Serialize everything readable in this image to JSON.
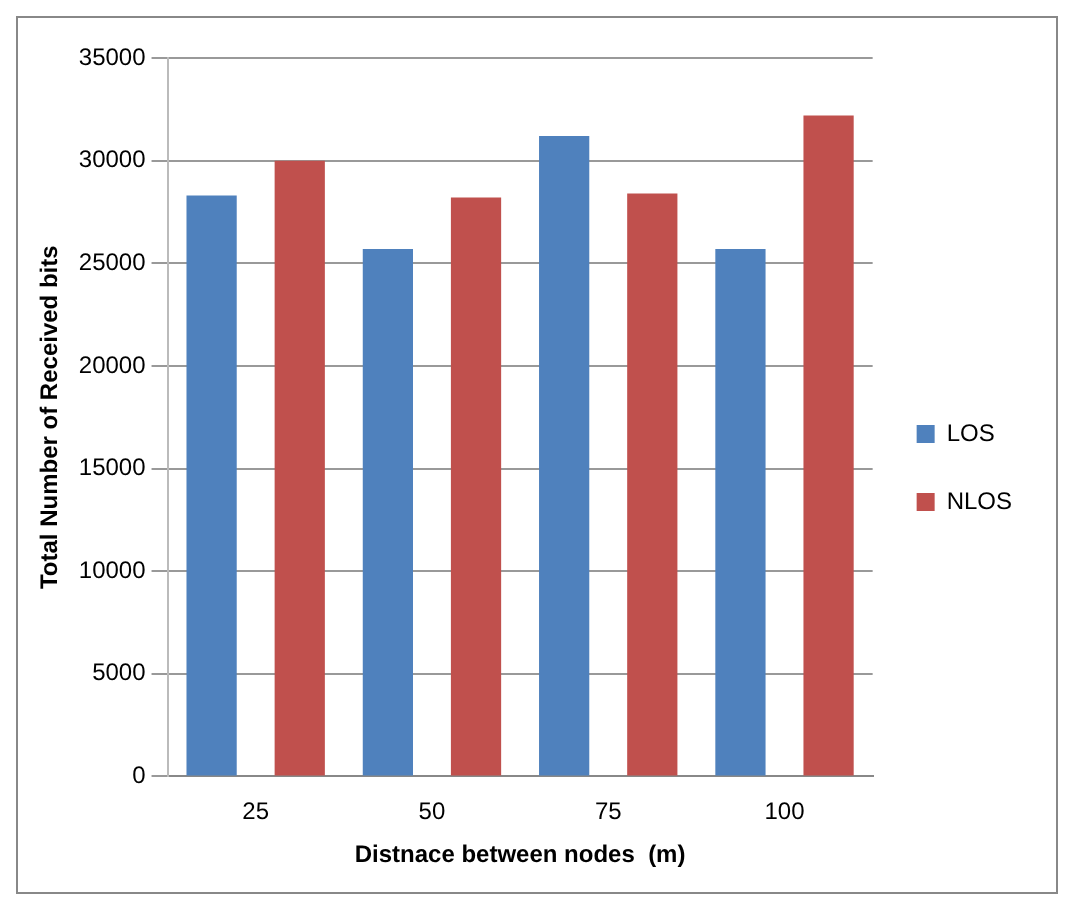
{
  "chart_data": {
    "type": "bar",
    "xlabel": "Distnace between nodes  (m)",
    "ylabel": "Total Number of Received bits",
    "categories": [
      "25",
      "50",
      "75",
      "100"
    ],
    "series": [
      {
        "name": "LOS",
        "color": "#4f81bd",
        "values": [
          28300,
          25700,
          31200,
          25700
        ]
      },
      {
        "name": "NLOS",
        "color": "#c0504d",
        "values": [
          30000,
          28200,
          28400,
          32200
        ]
      }
    ],
    "ylim": [
      0,
      35000
    ],
    "yticks": [
      0,
      5000,
      10000,
      15000,
      20000,
      25000,
      30000,
      35000
    ],
    "grid": "y",
    "legend": "right"
  }
}
